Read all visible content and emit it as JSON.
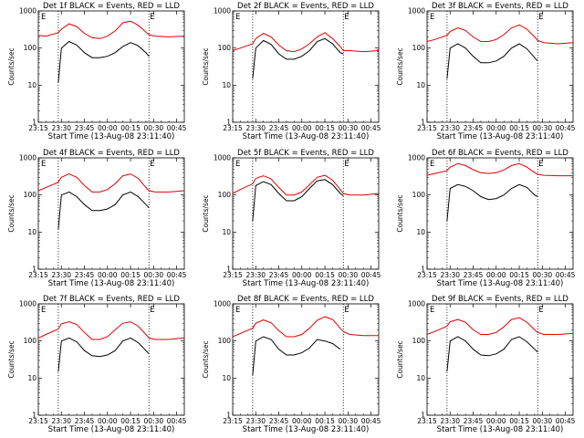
{
  "chart_data": [
    {
      "type": "line",
      "title": "Det 1f BLACK = Events, RED = LLD",
      "ylabel": "Counts/sec",
      "xlabel": "Start Time (13-Aug-08 23:11:40)",
      "x_ticks": [
        "23:15",
        "23:30",
        "23:45",
        "00:00",
        "00:15",
        "00:30",
        "00:45"
      ],
      "y_ticks": [
        "1",
        "10",
        "100",
        "1000"
      ],
      "yscale": "log",
      "ylim": [
        1,
        1000
      ],
      "markers": [
        "E",
        "E"
      ],
      "x": [
        0,
        5,
        13,
        15,
        20,
        25,
        30,
        35,
        40,
        45,
        50,
        55,
        60,
        65,
        70,
        72,
        76,
        85,
        95
      ],
      "series": [
        {
          "name": "Events",
          "color": "#000000",
          "values": [
            null,
            null,
            12,
            100,
            150,
            120,
            75,
            55,
            55,
            60,
            75,
            110,
            140,
            115,
            75,
            60,
            null,
            null,
            null
          ]
        },
        {
          "name": "LLD",
          "color": "#e00000",
          "values": [
            220,
            210,
            260,
            320,
            450,
            380,
            250,
            190,
            180,
            210,
            290,
            480,
            530,
            410,
            270,
            230,
            210,
            200,
            210
          ]
        }
      ]
    },
    {
      "type": "line",
      "title": "Det 2f BLACK = Events, RED = LLD",
      "ylabel": "Counts/sec",
      "xlabel": "Start Time (13-Aug-08 23:11:40)",
      "x_ticks": [
        "23:15",
        "23:30",
        "23:45",
        "00:00",
        "00:15",
        "00:30",
        "00:45"
      ],
      "y_ticks": [
        "1",
        "10",
        "100",
        "1000"
      ],
      "yscale": "log",
      "ylim": [
        1,
        1000
      ],
      "markers": [
        "E",
        "E"
      ],
      "x": [
        0,
        5,
        13,
        15,
        20,
        25,
        30,
        35,
        40,
        45,
        50,
        55,
        60,
        65,
        70,
        72,
        76,
        85,
        95
      ],
      "series": [
        {
          "name": "Events",
          "color": "#000000",
          "values": [
            null,
            null,
            15,
            100,
            160,
            125,
            70,
            50,
            50,
            60,
            85,
            150,
            180,
            130,
            75,
            70,
            null,
            null,
            null
          ]
        },
        {
          "name": "LLD",
          "color": "#e00000",
          "values": [
            85,
            100,
            130,
            180,
            250,
            200,
            120,
            85,
            80,
            95,
            130,
            200,
            260,
            180,
            110,
            85,
            85,
            80,
            85
          ]
        }
      ]
    },
    {
      "type": "line",
      "title": "Det 3f BLACK = Events, RED = LLD",
      "ylabel": "Counts/sec",
      "xlabel": "Start Time (13-Aug-08 23:11:40)",
      "x_ticks": [
        "23:15",
        "23:30",
        "23:45",
        "00:00",
        "00:15",
        "00:30",
        "00:45"
      ],
      "y_ticks": [
        "1",
        "10",
        "100",
        "1000"
      ],
      "yscale": "log",
      "ylim": [
        1,
        1000
      ],
      "markers": [
        "E",
        "E"
      ],
      "x": [
        0,
        5,
        13,
        15,
        20,
        25,
        30,
        35,
        40,
        45,
        50,
        55,
        60,
        65,
        70,
        72,
        76,
        85,
        95
      ],
      "series": [
        {
          "name": "Events",
          "color": "#000000",
          "values": [
            null,
            null,
            15,
            100,
            130,
            100,
            60,
            40,
            40,
            45,
            60,
            100,
            130,
            95,
            55,
            45,
            null,
            null,
            null
          ]
        },
        {
          "name": "LLD",
          "color": "#e00000",
          "values": [
            150,
            170,
            220,
            280,
            350,
            300,
            200,
            150,
            150,
            170,
            230,
            350,
            420,
            320,
            200,
            160,
            140,
            130,
            140
          ]
        }
      ]
    },
    {
      "type": "line",
      "title": "Det 4f BLACK = Events, RED = LLD",
      "ylabel": "Counts/sec",
      "xlabel": "Start Time (13-Aug-08 23:11:40)",
      "x_ticks": [
        "23:15",
        "23:30",
        "23:45",
        "00:00",
        "00:15",
        "00:30",
        "00:45"
      ],
      "y_ticks": [
        "1",
        "10",
        "100",
        "1000"
      ],
      "yscale": "log",
      "ylim": [
        1,
        1000
      ],
      "markers": [
        "E",
        "E"
      ],
      "x": [
        0,
        5,
        13,
        15,
        20,
        25,
        30,
        35,
        40,
        45,
        50,
        55,
        60,
        65,
        70,
        72,
        76,
        85,
        95
      ],
      "series": [
        {
          "name": "Events",
          "color": "#000000",
          "values": [
            null,
            null,
            12,
            100,
            120,
            90,
            55,
            38,
            38,
            42,
            55,
            100,
            120,
            90,
            55,
            45,
            null,
            null,
            null
          ]
        },
        {
          "name": "LLD",
          "color": "#e00000",
          "values": [
            130,
            160,
            220,
            300,
            370,
            300,
            180,
            120,
            120,
            140,
            200,
            330,
            370,
            280,
            160,
            130,
            120,
            120,
            130
          ]
        }
      ]
    },
    {
      "type": "line",
      "title": "Det 5f BLACK = Events, RED = LLD",
      "ylabel": "Counts/sec",
      "xlabel": "Start Time (13-Aug-08 23:11:40)",
      "x_ticks": [
        "23:15",
        "23:30",
        "23:45",
        "00:00",
        "00:15",
        "00:30",
        "00:45"
      ],
      "y_ticks": [
        "1",
        "10",
        "100",
        "1000"
      ],
      "yscale": "log",
      "ylim": [
        1,
        1000
      ],
      "markers": [
        "E",
        "E"
      ],
      "x": [
        0,
        5,
        13,
        15,
        20,
        25,
        30,
        35,
        40,
        45,
        50,
        55,
        60,
        65,
        70,
        72,
        76,
        85,
        95
      ],
      "series": [
        {
          "name": "Events",
          "color": "#000000",
          "values": [
            null,
            null,
            20,
            180,
            230,
            190,
            110,
            70,
            70,
            90,
            150,
            240,
            260,
            190,
            110,
            95,
            null,
            null,
            null
          ]
        },
        {
          "name": "LLD",
          "color": "#e00000",
          "values": [
            110,
            140,
            200,
            280,
            330,
            270,
            160,
            100,
            100,
            120,
            190,
            300,
            340,
            250,
            140,
            110,
            100,
            100,
            110
          ]
        }
      ]
    },
    {
      "type": "line",
      "title": "Det 6f BLACK = Events, RED = LLD",
      "ylabel": "Counts/sec",
      "xlabel": "Start Time (13-Aug-08 23:11:40)",
      "x_ticks": [
        "23:15",
        "23:30",
        "23:45",
        "00:00",
        "00:15",
        "00:30",
        "00:45"
      ],
      "y_ticks": [
        "1",
        "10",
        "100",
        "1000"
      ],
      "yscale": "log",
      "ylim": [
        1,
        1000
      ],
      "markers": [
        "E",
        "E"
      ],
      "x": [
        0,
        5,
        13,
        15,
        20,
        25,
        30,
        35,
        40,
        45,
        50,
        55,
        60,
        65,
        70,
        72,
        76,
        85,
        95
      ],
      "series": [
        {
          "name": "Events",
          "color": "#000000",
          "values": [
            null,
            null,
            20,
            150,
            190,
            170,
            130,
            90,
            75,
            80,
            100,
            150,
            190,
            160,
            100,
            90,
            null,
            null,
            null
          ]
        },
        {
          "name": "LLD",
          "color": "#e00000",
          "values": [
            340,
            380,
            450,
            560,
            700,
            620,
            480,
            400,
            380,
            400,
            470,
            620,
            700,
            560,
            400,
            360,
            340,
            330,
            330
          ]
        }
      ]
    },
    {
      "type": "line",
      "title": "Det 7f BLACK = Events, RED = LLD",
      "ylabel": "Counts/sec",
      "xlabel": "Start Time (13-Aug-08 23:11:40)",
      "x_ticks": [
        "23:15",
        "23:30",
        "23:45",
        "00:00",
        "00:15",
        "00:30",
        "00:45"
      ],
      "y_ticks": [
        "1",
        "10",
        "100",
        "1000"
      ],
      "yscale": "log",
      "ylim": [
        1,
        1000
      ],
      "markers": [
        "E",
        "E"
      ],
      "x": [
        0,
        5,
        13,
        15,
        20,
        25,
        30,
        35,
        40,
        45,
        50,
        55,
        60,
        65,
        70,
        72,
        76,
        85,
        95
      ],
      "series": [
        {
          "name": "Events",
          "color": "#000000",
          "values": [
            null,
            null,
            15,
            100,
            120,
            95,
            55,
            40,
            38,
            42,
            55,
            100,
            120,
            90,
            55,
            45,
            null,
            null,
            null
          ]
        },
        {
          "name": "LLD",
          "color": "#e00000",
          "values": [
            120,
            150,
            210,
            290,
            330,
            280,
            170,
            110,
            110,
            130,
            200,
            300,
            330,
            250,
            150,
            120,
            110,
            110,
            120
          ]
        }
      ]
    },
    {
      "type": "line",
      "title": "Det 8f BLACK = Events, RED = LLD",
      "ylabel": "Counts/sec",
      "xlabel": "Start Time (13-Aug-08 23:11:40)",
      "x_ticks": [
        "23:15",
        "23:30",
        "23:45",
        "00:00",
        "00:15",
        "00:30",
        "00:45"
      ],
      "y_ticks": [
        "1",
        "10",
        "100",
        "1000"
      ],
      "yscale": "log",
      "ylim": [
        1,
        1000
      ],
      "markers": [
        "E",
        "E"
      ],
      "x": [
        0,
        5,
        13,
        15,
        20,
        25,
        30,
        35,
        40,
        45,
        50,
        55,
        60,
        65,
        70,
        72,
        76,
        85,
        95
      ],
      "series": [
        {
          "name": "Events",
          "color": "#000000",
          "values": [
            null,
            null,
            12,
            100,
            130,
            110,
            60,
            42,
            42,
            48,
            65,
            110,
            100,
            85,
            60,
            null,
            null,
            null,
            null
          ]
        },
        {
          "name": "LLD",
          "color": "#e00000",
          "values": [
            130,
            160,
            220,
            300,
            370,
            310,
            190,
            130,
            130,
            150,
            220,
            360,
            450,
            380,
            220,
            180,
            150,
            140,
            140
          ]
        }
      ]
    },
    {
      "type": "line",
      "title": "Det 9f BLACK = Events, RED = LLD",
      "ylabel": "Counts/sec",
      "xlabel": "Start Time (13-Aug-08 23:11:40)",
      "x_ticks": [
        "23:15",
        "23:30",
        "23:45",
        "00:00",
        "00:15",
        "00:30",
        "00:45"
      ],
      "y_ticks": [
        "1",
        "10",
        "100",
        "1000"
      ],
      "yscale": "log",
      "ylim": [
        1,
        1000
      ],
      "markers": [
        "E",
        "E"
      ],
      "x": [
        0,
        5,
        13,
        15,
        20,
        25,
        30,
        35,
        40,
        45,
        50,
        55,
        60,
        65,
        70,
        72,
        76,
        85,
        95
      ],
      "series": [
        {
          "name": "Events",
          "color": "#000000",
          "values": [
            null,
            null,
            15,
            100,
            130,
            100,
            60,
            42,
            40,
            45,
            60,
            110,
            130,
            95,
            60,
            50,
            null,
            null,
            null
          ]
        },
        {
          "name": "LLD",
          "color": "#e00000",
          "values": [
            150,
            180,
            250,
            330,
            380,
            320,
            200,
            150,
            150,
            170,
            240,
            380,
            420,
            320,
            200,
            170,
            150,
            150,
            160
          ]
        }
      ]
    }
  ]
}
